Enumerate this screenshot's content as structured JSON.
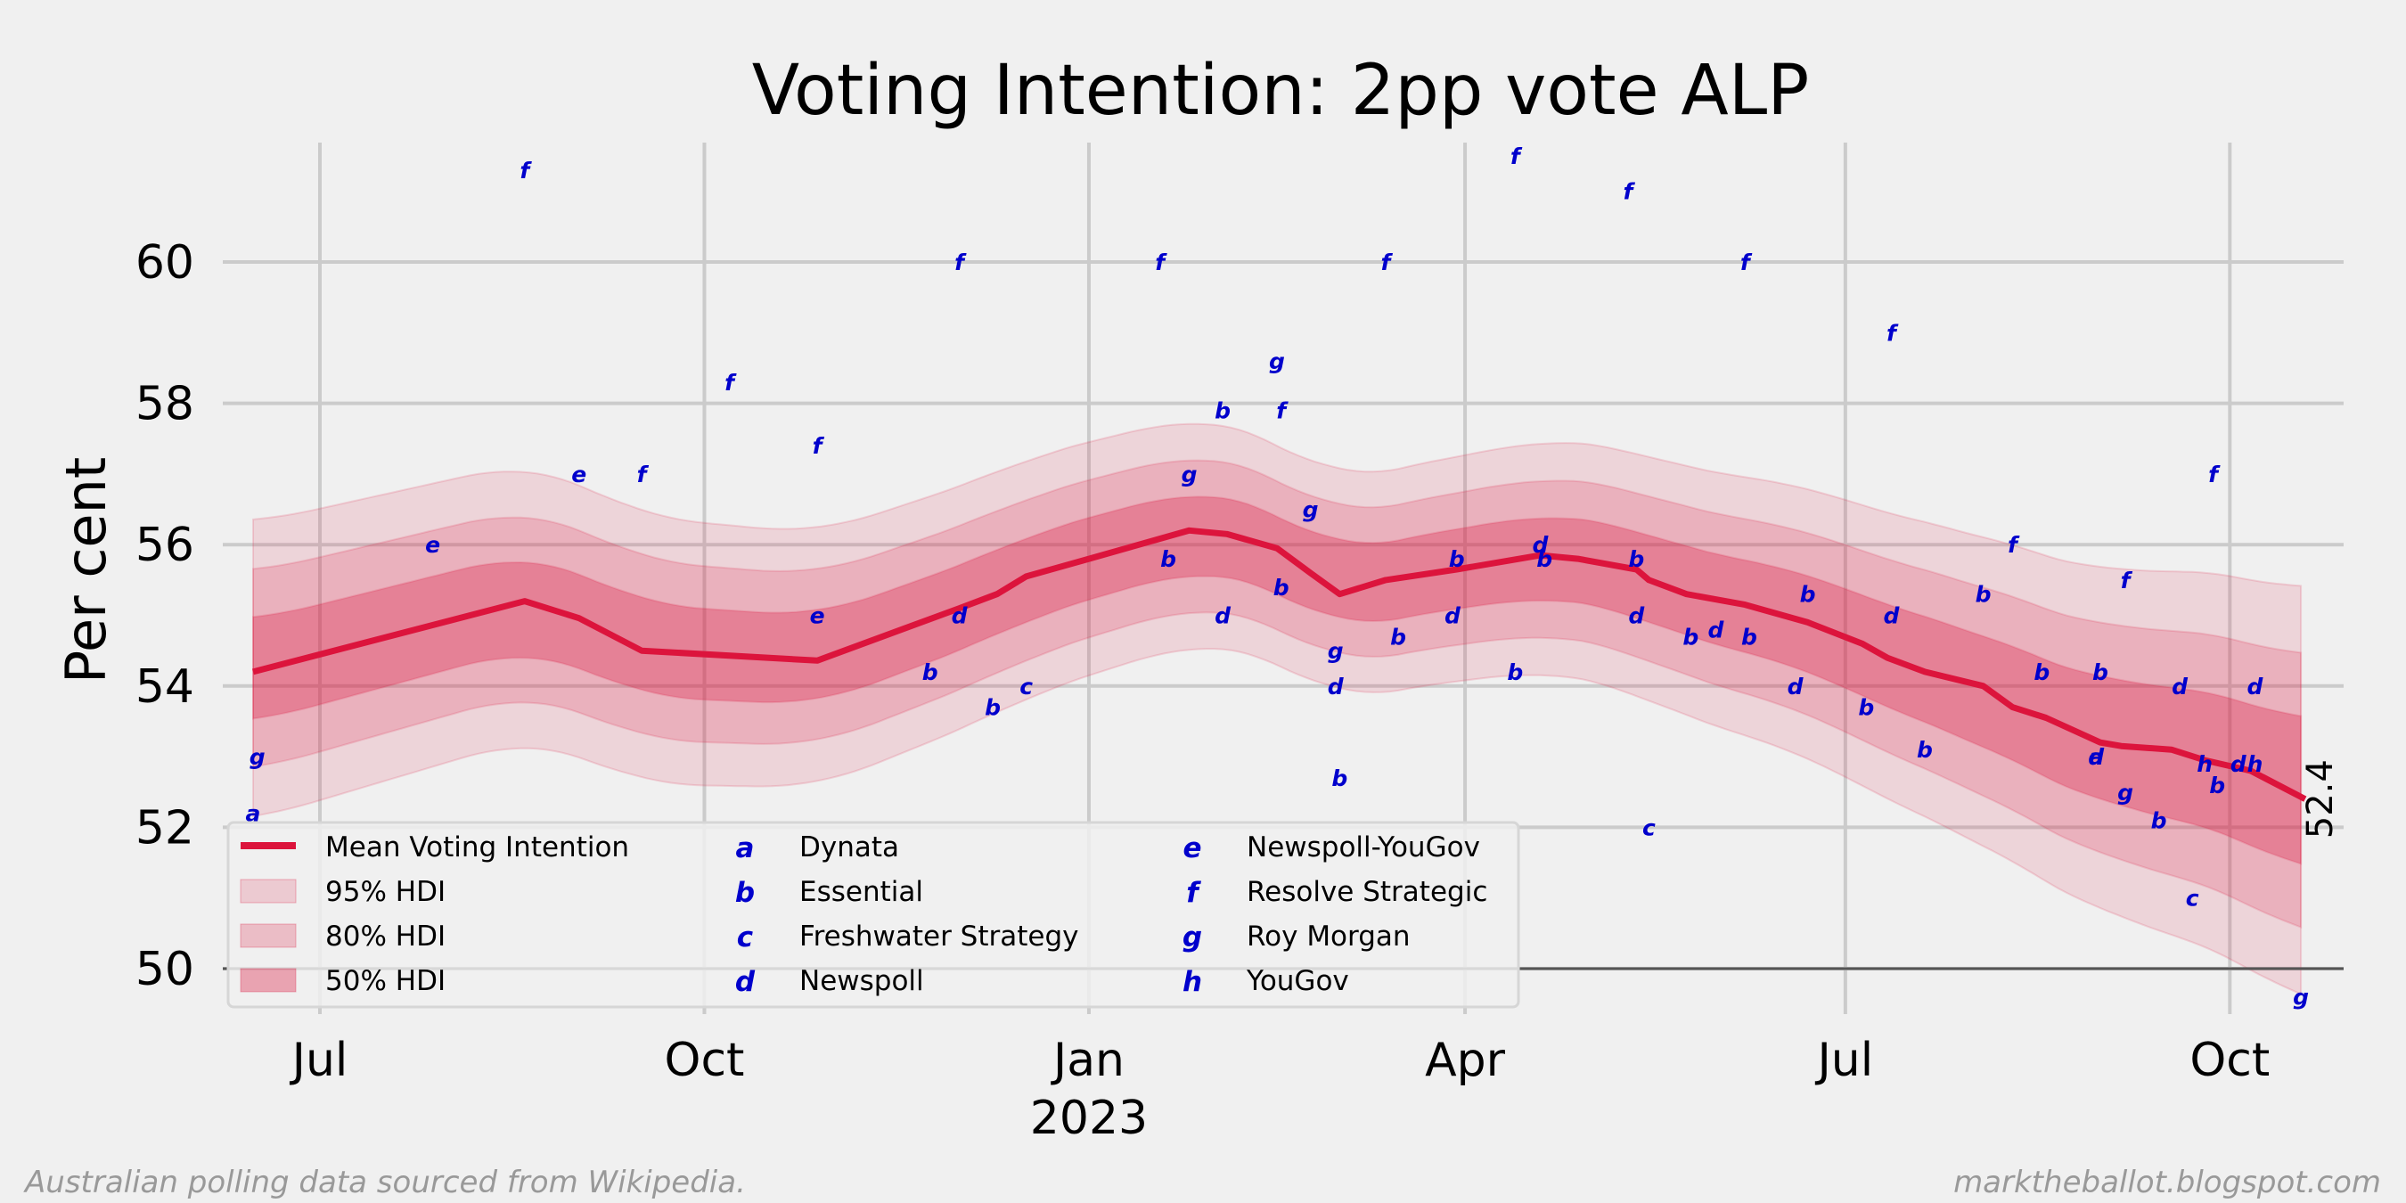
{
  "chart_data": {
    "type": "line",
    "title": "Voting Intention: 2pp vote ALP",
    "xlabel": "",
    "ylabel": "Per cent",
    "ylim": [
      49.4,
      61.7
    ],
    "yticks": [
      50,
      52,
      54,
      56,
      58,
      60
    ],
    "xlim_days_from_2022_07_01": [
      -24,
      482
    ],
    "xticks": [
      {
        "day": 0,
        "label": "Jul"
      },
      {
        "day": 92,
        "label": "Oct"
      },
      {
        "day": 184,
        "label": "Jan",
        "sublabel": "2023"
      },
      {
        "day": 274,
        "label": "Apr"
      },
      {
        "day": 365,
        "label": "Jul"
      },
      {
        "day": 457,
        "label": "Oct"
      }
    ],
    "grid": true,
    "reference_line": 50,
    "end_label": "52.4",
    "mean": {
      "name": "Mean Voting Intention",
      "color": "#dc143c",
      "days": [
        -16,
        49,
        62,
        77,
        119,
        153,
        162,
        169,
        184,
        208,
        217,
        229,
        237,
        244,
        255,
        272,
        292,
        301,
        315,
        318,
        327,
        341,
        356,
        369,
        375,
        384,
        398,
        405,
        413,
        426,
        431,
        443,
        451,
        462,
        475
      ],
      "values": [
        54.2,
        55.2,
        54.96,
        54.5,
        54.36,
        55.1,
        55.3,
        55.55,
        55.8,
        56.2,
        56.15,
        55.95,
        55.6,
        55.3,
        55.5,
        55.65,
        55.85,
        55.8,
        55.65,
        55.5,
        55.3,
        55.15,
        54.9,
        54.6,
        54.4,
        54.2,
        54.0,
        53.7,
        53.55,
        53.2,
        53.15,
        53.1,
        52.95,
        52.8,
        52.4
      ]
    },
    "bands": [
      {
        "name": "95% HDI",
        "half_width_start": 2.1,
        "half_width_mid": 1.55,
        "half_width_end": 2.9,
        "color": "#dc143c",
        "opacity": 0.12
      },
      {
        "name": "80% HDI",
        "half_width_start": 1.4,
        "half_width_mid": 1.05,
        "half_width_end": 1.95,
        "color": "#dc143c",
        "opacity": 0.18
      },
      {
        "name": "50% HDI",
        "half_width_start": 0.72,
        "half_width_mid": 0.55,
        "half_width_end": 1.05,
        "color": "#dc143c",
        "opacity": 0.3
      }
    ],
    "pollsters": [
      {
        "code": "a",
        "name": "Dynata"
      },
      {
        "code": "b",
        "name": "Essential"
      },
      {
        "code": "c",
        "name": "Freshwater Strategy"
      },
      {
        "code": "d",
        "name": "Newspoll"
      },
      {
        "code": "e",
        "name": "Newspoll-YouGov"
      },
      {
        "code": "f",
        "name": "Resolve Strategic"
      },
      {
        "code": "g",
        "name": "Roy Morgan"
      },
      {
        "code": "h",
        "name": "YouGov"
      }
    ],
    "polls": [
      {
        "p": "a",
        "day": -16,
        "v": 52.2
      },
      {
        "p": "g",
        "day": -15,
        "v": 53.0
      },
      {
        "p": "e",
        "day": 27,
        "v": 56.0
      },
      {
        "p": "f",
        "day": 49,
        "v": 61.3
      },
      {
        "p": "e",
        "day": 62,
        "v": 57.0
      },
      {
        "p": "f",
        "day": 77,
        "v": 57.0
      },
      {
        "p": "f",
        "day": 98,
        "v": 58.3
      },
      {
        "p": "f",
        "day": 119,
        "v": 57.4
      },
      {
        "p": "e",
        "day": 119,
        "v": 55.0
      },
      {
        "p": "b",
        "day": 146,
        "v": 54.2
      },
      {
        "p": "d",
        "day": 153,
        "v": 55.0
      },
      {
        "p": "f",
        "day": 153,
        "v": 60.0
      },
      {
        "p": "b",
        "day": 161,
        "v": 53.7
      },
      {
        "p": "c",
        "day": 169,
        "v": 54.0
      },
      {
        "p": "f",
        "day": 201,
        "v": 60.0
      },
      {
        "p": "b",
        "day": 203,
        "v": 55.8
      },
      {
        "p": "g",
        "day": 208,
        "v": 57.0
      },
      {
        "p": "b",
        "day": 216,
        "v": 57.9
      },
      {
        "p": "d",
        "day": 216,
        "v": 55.0
      },
      {
        "p": "g",
        "day": 229,
        "v": 58.6
      },
      {
        "p": "f",
        "day": 230,
        "v": 57.9
      },
      {
        "p": "b",
        "day": 230,
        "v": 55.4
      },
      {
        "p": "g",
        "day": 237,
        "v": 56.5
      },
      {
        "p": "g",
        "day": 243,
        "v": 54.5
      },
      {
        "p": "d",
        "day": 243,
        "v": 54.0
      },
      {
        "p": "b",
        "day": 244,
        "v": 52.7
      },
      {
        "p": "f",
        "day": 255,
        "v": 60.0
      },
      {
        "p": "b",
        "day": 258,
        "v": 54.7
      },
      {
        "p": "d",
        "day": 271,
        "v": 55.0
      },
      {
        "p": "b",
        "day": 272,
        "v": 55.8
      },
      {
        "p": "f",
        "day": 286,
        "v": 61.5
      },
      {
        "p": "b",
        "day": 286,
        "v": 54.2
      },
      {
        "p": "d",
        "day": 292,
        "v": 56.0
      },
      {
        "p": "b",
        "day": 293,
        "v": 55.8
      },
      {
        "p": "f",
        "day": 313,
        "v": 61.0
      },
      {
        "p": "b",
        "day": 315,
        "v": 55.8
      },
      {
        "p": "d",
        "day": 315,
        "v": 55.0
      },
      {
        "p": "c",
        "day": 318,
        "v": 52.0
      },
      {
        "p": "b",
        "day": 328,
        "v": 54.7
      },
      {
        "p": "d",
        "day": 334,
        "v": 54.8
      },
      {
        "p": "b",
        "day": 342,
        "v": 54.7
      },
      {
        "p": "f",
        "day": 341,
        "v": 60.0
      },
      {
        "p": "d",
        "day": 353,
        "v": 54.0
      },
      {
        "p": "b",
        "day": 356,
        "v": 55.3
      },
      {
        "p": "b",
        "day": 370,
        "v": 53.7
      },
      {
        "p": "f",
        "day": 376,
        "v": 59.0
      },
      {
        "p": "d",
        "day": 376,
        "v": 55.0
      },
      {
        "p": "b",
        "day": 384,
        "v": 53.1
      },
      {
        "p": "b",
        "day": 398,
        "v": 55.3
      },
      {
        "p": "f",
        "day": 405,
        "v": 56.0
      },
      {
        "p": "b",
        "day": 412,
        "v": 54.2
      },
      {
        "p": "a",
        "day": 425,
        "v": 53.0
      },
      {
        "p": "d",
        "day": 425,
        "v": 53.0
      },
      {
        "p": "b",
        "day": 426,
        "v": 54.2
      },
      {
        "p": "g",
        "day": 432,
        "v": 52.5
      },
      {
        "p": "f",
        "day": 432,
        "v": 55.5
      },
      {
        "p": "b",
        "day": 440,
        "v": 52.1
      },
      {
        "p": "d",
        "day": 445,
        "v": 54.0
      },
      {
        "p": "c",
        "day": 448,
        "v": 51.0
      },
      {
        "p": "h",
        "day": 451,
        "v": 52.9
      },
      {
        "p": "f",
        "day": 453,
        "v": 57.0
      },
      {
        "p": "b",
        "day": 454,
        "v": 52.6
      },
      {
        "p": "d",
        "day": 459,
        "v": 52.9
      },
      {
        "p": "h",
        "day": 463,
        "v": 52.9
      },
      {
        "p": "d",
        "day": 463,
        "v": 54.0
      },
      {
        "p": "g",
        "day": 474,
        "v": 49.6
      }
    ]
  },
  "footer": {
    "left": "Australian polling data sourced from Wikipedia.",
    "right": "marktheballot.blogspot.com"
  }
}
